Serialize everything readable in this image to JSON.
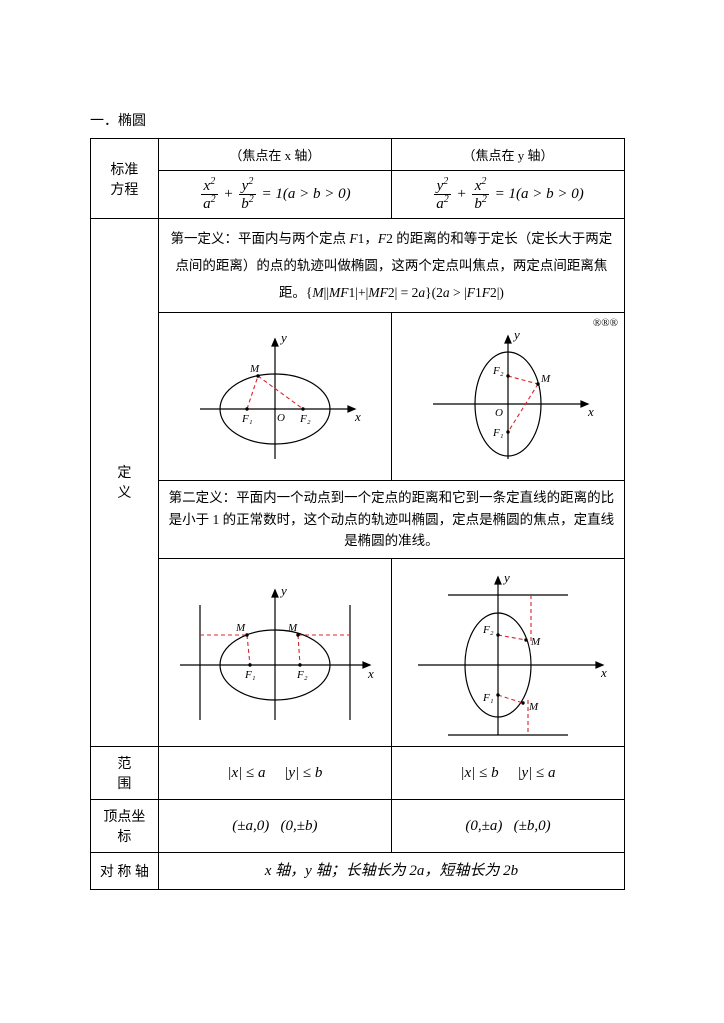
{
  "title": "一．椭圆",
  "header": {
    "row_label": "标准\n方程",
    "x_axis_caption": "（焦点在 x 轴）",
    "y_axis_caption": "（焦点在 y 轴）",
    "eq_x_html": "<span class='frac'><span class='n'>x<span class='up'>2</span></span><span class='d'>a<span class='up'>2</span></span></span> + <span class='frac'><span class='n'>y<span class='up'>2</span></span><span class='d'>b<span class='up'>2</span></span></span> = 1(a &gt; b &gt; 0)",
    "eq_y_html": "<span class='frac'><span class='n'>y<span class='up'>2</span></span><span class='d'>a<span class='up'>2</span></span></span> + <span class='frac'><span class='n'>x<span class='up'>2</span></span><span class='d'>b<span class='up'>2</span></span></span> = 1(a &gt; b &gt; 0)"
  },
  "definition_label": "定　　义",
  "def1_text_html": "第一定义：平面内与两个定点 <span class='it'>F</span><span class='dn'>1</span>，<span class='it'>F</span><span class='dn'>2</span> 的距离的和等于定长（定长大于两定点间的距离）的点的轨迹叫做椭圆，这两个定点叫焦点，两定点间距离焦距。{<span class='it'>M</span>||<span class='it'>MF</span><span class='dn'>1</span>|+|<span class='it'>MF</span><span class='dn'>2</span>| = 2<span class='it'>a</span>}(2<span class='it'>a</span> &gt; |<span class='it'>F</span><span class='dn'>1</span><span class='it'>F</span><span class='dn'>2</span>|)",
  "def2_text": "第二定义：平面内一个动点到一个定点的距离和它到一条定直线的距离的比是小于 1 的正常数时，这个动点的轨迹叫椭圆，定点是椭圆的焦点，定直线是椭圆的准线。",
  "corner_mark": "®®®",
  "range": {
    "label": "范　　围",
    "x_html": "|<span class='it'>x</span>| ≤ <span class='it'>a</span>     |<span class='it'>y</span>| ≤ <span class='it'>b</span>",
    "y_html": "|<span class='it'>x</span>| ≤ <span class='it'>b</span>     |<span class='it'>y</span>| ≤ <span class='it'>a</span>"
  },
  "vertex": {
    "label": "顶点坐标",
    "x_html": "(±<span class='it'>a</span>,0)   (0,±<span class='it'>b</span>)",
    "y_html": "(0,±<span class='it'>a</span>)   (±<span class='it'>b</span>,0)"
  },
  "symaxis": {
    "label": "对 称 轴",
    "text_html": "<span class='it'>x</span> 轴，<span class='it'>y</span> 轴；长轴长为 2<span class='it'>a</span>，短轴长为 2<span class='it'>b</span>"
  },
  "figs": {
    "stroke": "#000000",
    "dash": "#d8232a",
    "fill": "#ffffff",
    "axis_fontsize": 12,
    "label_fontsize": 11
  }
}
